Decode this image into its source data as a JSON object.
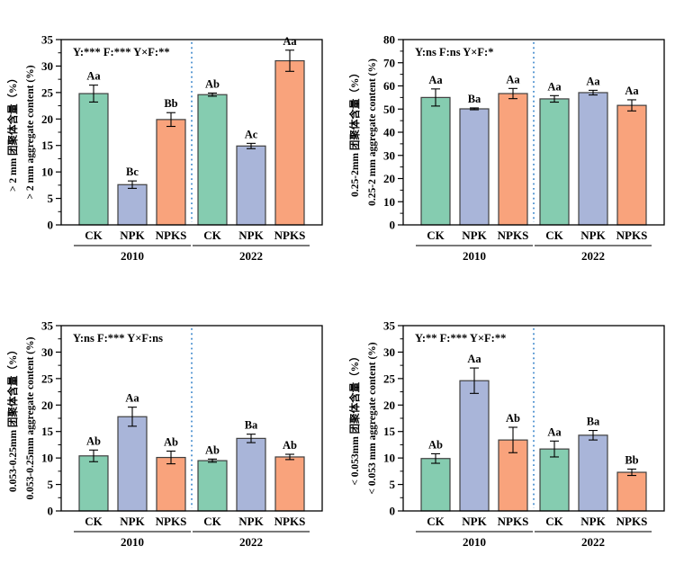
{
  "figure": {
    "background": "#ffffff",
    "axis_color": "#000000",
    "bar_edge_color": "#3f3f3f",
    "divider_color": "#4a90d0",
    "group_line_color": "#4d4d4d",
    "treatments": [
      {
        "name": "CK",
        "color": "#85ccb0"
      },
      {
        "name": "NPK",
        "color": "#a9b5d9"
      },
      {
        "name": "NPKS",
        "color": "#f9a37c"
      }
    ],
    "groups": [
      "2010",
      "2022"
    ]
  },
  "chart_data": [
    {
      "id": "gt-2mm",
      "type": "bar",
      "annotation": "Y:***  F:***  Y×F:**",
      "ylabel_zh": "> 2 mm 团聚体含量（%）",
      "ylabel_en": "> 2 mm  aggregate content (%)",
      "ylim": [
        0,
        35
      ],
      "ytick_step": 5,
      "yminor_step": 2.5,
      "categories": [
        "CK",
        "NPK",
        "NPKS"
      ],
      "groups": [
        {
          "label": "2010",
          "bars": [
            {
              "treatment": "CK",
              "value": 24.8,
              "error": 1.6,
              "letter": "Aa"
            },
            {
              "treatment": "NPK",
              "value": 7.6,
              "error": 0.7,
              "letter": "Bc"
            },
            {
              "treatment": "NPKS",
              "value": 19.9,
              "error": 1.3,
              "letter": "Bb"
            }
          ]
        },
        {
          "label": "2022",
          "bars": [
            {
              "treatment": "CK",
              "value": 24.6,
              "error": 0.3,
              "letter": "Ab"
            },
            {
              "treatment": "NPK",
              "value": 14.9,
              "error": 0.5,
              "letter": "Ac"
            },
            {
              "treatment": "NPKS",
              "value": 31.0,
              "error": 2.0,
              "letter": "Aa"
            }
          ]
        }
      ]
    },
    {
      "id": "0.25-2mm",
      "type": "bar",
      "annotation": "Y:ns  F:ns  Y×F:*",
      "ylabel_zh": "0.25-2mm 团聚体含量（%）",
      "ylabel_en": "0.25-2 mm  aggregate content (%)",
      "ylim": [
        0,
        80
      ],
      "ytick_step": 10,
      "yminor_step": 5,
      "categories": [
        "CK",
        "NPK",
        "NPKS"
      ],
      "groups": [
        {
          "label": "2010",
          "bars": [
            {
              "treatment": "CK",
              "value": 55.0,
              "error": 3.7,
              "letter": "Aa"
            },
            {
              "treatment": "NPK",
              "value": 50.1,
              "error": 0.4,
              "letter": "Ba"
            },
            {
              "treatment": "NPKS",
              "value": 56.7,
              "error": 2.2,
              "letter": "Aa"
            }
          ]
        },
        {
          "label": "2022",
          "bars": [
            {
              "treatment": "CK",
              "value": 54.4,
              "error": 1.4,
              "letter": "Aa"
            },
            {
              "treatment": "NPK",
              "value": 57.1,
              "error": 1.0,
              "letter": "Aa"
            },
            {
              "treatment": "NPKS",
              "value": 51.6,
              "error": 2.4,
              "letter": "Aa"
            }
          ]
        }
      ]
    },
    {
      "id": "0.053-0.25mm",
      "type": "bar",
      "annotation": "Y:ns  F:***  Y×F:ns",
      "ylabel_zh": "0.053-0.25mm 团聚体含量（%）",
      "ylabel_en": "0.053-0.25mm  aggregate content (%)",
      "ylim": [
        0,
        35
      ],
      "ytick_step": 5,
      "yminor_step": 2.5,
      "categories": [
        "CK",
        "NPK",
        "NPKS"
      ],
      "groups": [
        {
          "label": "2010",
          "bars": [
            {
              "treatment": "CK",
              "value": 10.4,
              "error": 1.1,
              "letter": "Ab"
            },
            {
              "treatment": "NPK",
              "value": 17.8,
              "error": 1.8,
              "letter": "Aa"
            },
            {
              "treatment": "NPKS",
              "value": 10.1,
              "error": 1.2,
              "letter": "Ab"
            }
          ]
        },
        {
          "label": "2022",
          "bars": [
            {
              "treatment": "CK",
              "value": 9.5,
              "error": 0.3,
              "letter": "Ab"
            },
            {
              "treatment": "NPK",
              "value": 13.7,
              "error": 0.8,
              "letter": "Ba"
            },
            {
              "treatment": "NPKS",
              "value": 10.2,
              "error": 0.5,
              "letter": "Ab"
            }
          ]
        }
      ]
    },
    {
      "id": "lt-0.053mm",
      "type": "bar",
      "annotation": "Y:**  F:***  Y×F:**",
      "ylabel_zh": "< 0.053mm 团聚体含量（%）",
      "ylabel_en": "< 0.053 mm  aggregate content (%)",
      "ylim": [
        0,
        35
      ],
      "ytick_step": 5,
      "yminor_step": 2.5,
      "categories": [
        "CK",
        "NPK",
        "NPKS"
      ],
      "groups": [
        {
          "label": "2010",
          "bars": [
            {
              "treatment": "CK",
              "value": 9.9,
              "error": 0.9,
              "letter": "Ab"
            },
            {
              "treatment": "NPK",
              "value": 24.6,
              "error": 2.4,
              "letter": "Aa"
            },
            {
              "treatment": "NPKS",
              "value": 13.4,
              "error": 2.4,
              "letter": "Ab"
            }
          ]
        },
        {
          "label": "2022",
          "bars": [
            {
              "treatment": "CK",
              "value": 11.7,
              "error": 1.5,
              "letter": "Aa"
            },
            {
              "treatment": "NPK",
              "value": 14.3,
              "error": 0.9,
              "letter": "Ba"
            },
            {
              "treatment": "NPKS",
              "value": 7.3,
              "error": 0.6,
              "letter": "Bb"
            }
          ]
        }
      ]
    }
  ]
}
